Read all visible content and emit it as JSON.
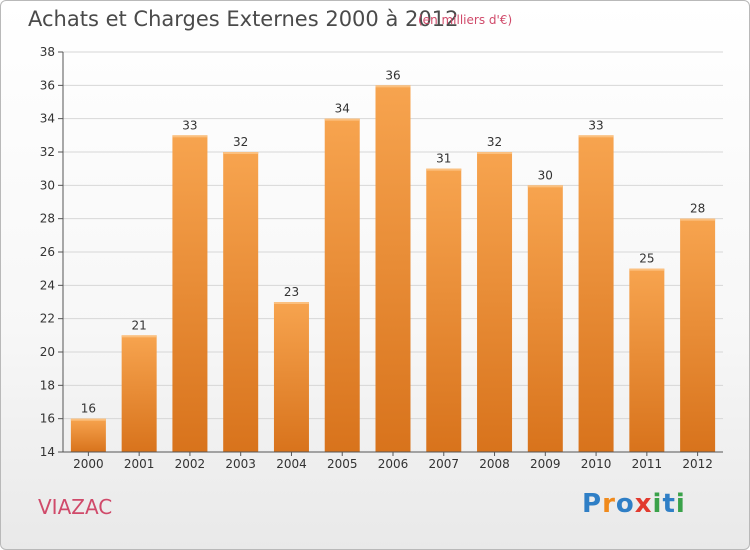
{
  "header": {
    "title": "Achats et Charges Externes 2000 à 2012",
    "unit": "(en milliers d'€)"
  },
  "footer": {
    "place": "VIAZAC",
    "logo": {
      "text": "Proxiti",
      "letters": [
        {
          "ch": "P",
          "color": "#2f7fc6"
        },
        {
          "ch": "r",
          "color": "#f08a1c"
        },
        {
          "ch": "o",
          "color": "#2f7fc6"
        },
        {
          "ch": "x",
          "color": "#e23a2e"
        },
        {
          "ch": "i",
          "color": "#3aa24a"
        },
        {
          "ch": "t",
          "color": "#2f7fc6"
        },
        {
          "ch": "i",
          "color": "#3aa24a"
        }
      ]
    }
  },
  "chart_data": {
    "type": "bar",
    "title": "Achats et Charges Externes 2000 à 2012",
    "subtitle": "(en milliers d'€)",
    "xlabel": "",
    "ylabel": "",
    "categories": [
      "2000",
      "2001",
      "2002",
      "2003",
      "2004",
      "2005",
      "2006",
      "2007",
      "2008",
      "2009",
      "2010",
      "2011",
      "2012"
    ],
    "values": [
      16,
      21,
      33,
      32,
      23,
      34,
      36,
      31,
      32,
      30,
      33,
      25,
      28
    ],
    "ylim": [
      14,
      38
    ],
    "yticks": [
      14,
      16,
      18,
      20,
      22,
      24,
      26,
      28,
      30,
      32,
      34,
      36,
      38
    ],
    "grid": true,
    "legend": "none",
    "colors": {
      "bar_light": "#f7a44f",
      "bar_dark": "#d8731c",
      "grid": "#d7d7d7",
      "axis": "#555555"
    }
  }
}
